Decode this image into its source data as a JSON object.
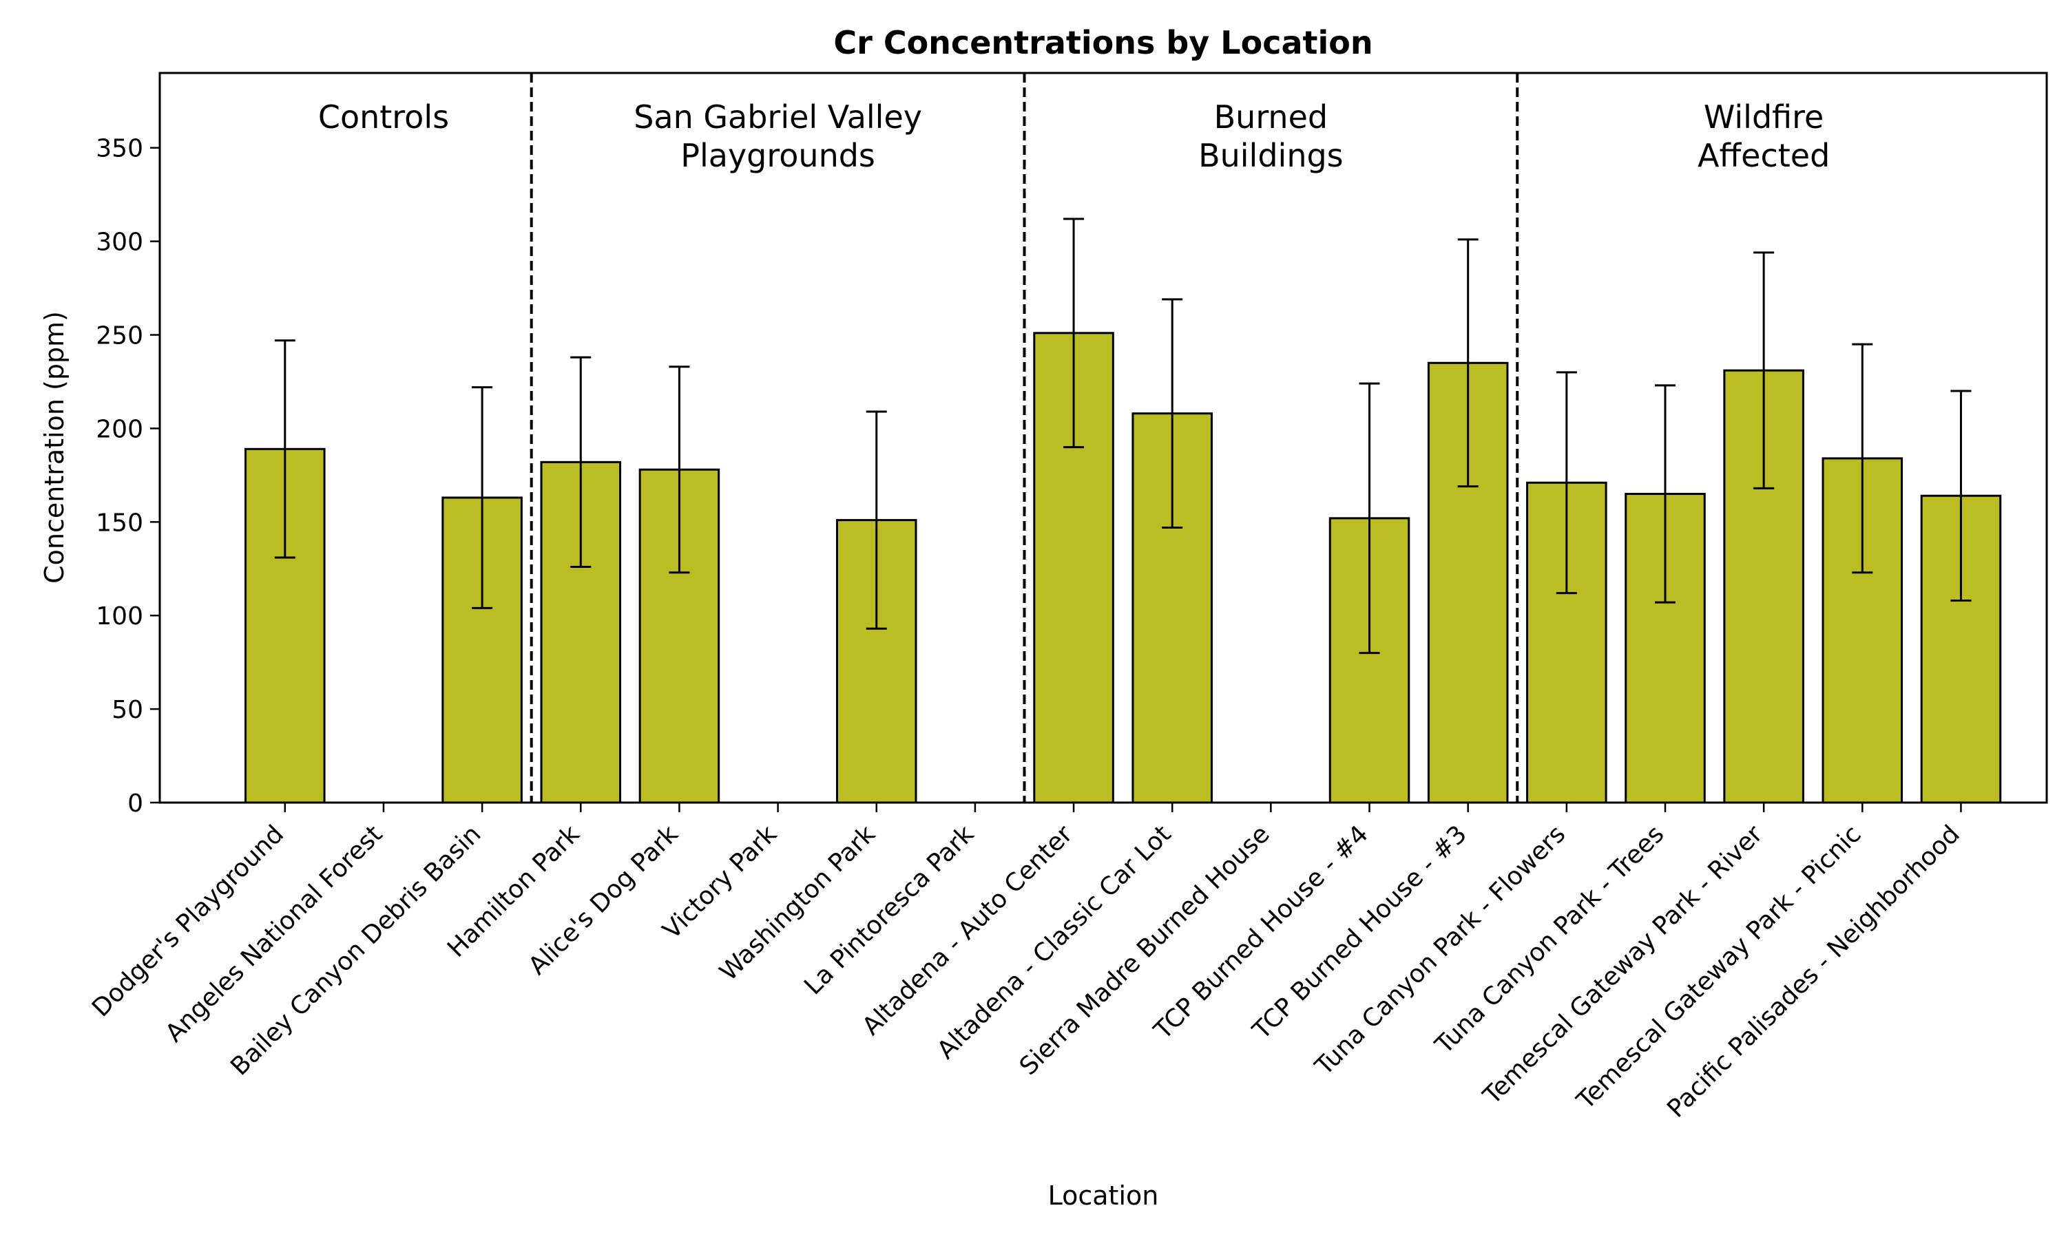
{
  "chart_data": {
    "type": "bar",
    "title": "Cr Concentrations by Location",
    "xlabel": "Location",
    "ylabel": "Concentration (ppm)",
    "ylim": [
      0,
      390
    ],
    "yticks": [
      0,
      50,
      100,
      150,
      200,
      250,
      300,
      350
    ],
    "grid": false,
    "bar_color": "#bcbd22",
    "edge_color": "#000000",
    "categories": [
      "Dodger's Playground",
      "Angeles National Forest",
      "Bailey Canyon Debris Basin",
      "Hamilton Park",
      "Alice's Dog Park",
      "Victory Park",
      "Washington Park",
      "La Pintoresca Park",
      "Altadena - Auto Center",
      "Altadena - Classic Car Lot",
      "Sierra Madre Burned House",
      "TCP Burned House - #4",
      "TCP Burned House - #3",
      "Tuna Canyon Park - Flowers",
      "Tuna Canyon Park - Trees",
      "Temescal Gateway Park - River",
      "Temescal Gateway Park - Picnic",
      "Pacific Palisades - Neighborhood"
    ],
    "values": [
      189,
      null,
      163,
      182,
      178,
      null,
      151,
      null,
      251,
      208,
      null,
      152,
      235,
      171,
      165,
      231,
      184,
      164
    ],
    "error_lower": [
      131,
      null,
      104,
      126,
      123,
      null,
      93,
      null,
      190,
      147,
      null,
      80,
      169,
      112,
      107,
      168,
      123,
      108
    ],
    "error_upper": [
      247,
      null,
      222,
      238,
      233,
      null,
      209,
      null,
      312,
      269,
      null,
      224,
      301,
      230,
      223,
      294,
      245,
      220
    ],
    "groups": [
      {
        "lines": [
          "Controls"
        ],
        "start": 0,
        "end": 2
      },
      {
        "lines": [
          "San Gabriel Valley",
          "Playgrounds"
        ],
        "start": 3,
        "end": 7
      },
      {
        "lines": [
          "Burned",
          "Buildings"
        ],
        "start": 8,
        "end": 12
      },
      {
        "lines": [
          "Wildfire",
          "Affected"
        ],
        "start": 13,
        "end": 17
      }
    ]
  }
}
